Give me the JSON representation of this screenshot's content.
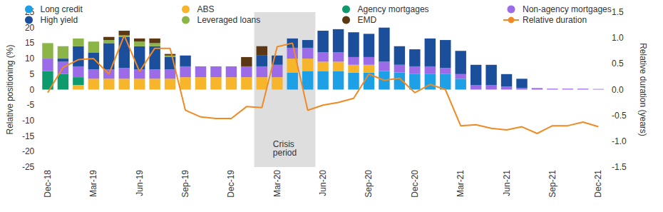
{
  "chart_data": {
    "type": "bar",
    "stacked": true,
    "grid": false,
    "legend": "top",
    "y_label": "Relative positioning (%)",
    "y2_label": "Relative duration (years)",
    "categories": [
      "Dec-18",
      null,
      null,
      "Mar-19",
      null,
      null,
      "Jun-19",
      null,
      null,
      "Sep-19",
      null,
      null,
      "Dec-19",
      null,
      null,
      "Mar-20",
      null,
      null,
      "Jun-20",
      null,
      null,
      "Sep-20",
      null,
      null,
      "Dec-20",
      null,
      null,
      "Mar-21",
      null,
      null,
      "Jun-21",
      null,
      null,
      "Sep-21",
      null,
      null,
      "Dec-21"
    ],
    "ylim": [
      -25,
      25
    ],
    "yticks": [
      -25,
      -20,
      -15,
      -10,
      -5,
      0,
      5,
      10,
      15,
      20,
      25
    ],
    "y2lim": [
      -1.5,
      1.5
    ],
    "y2ticks": [
      -1.5,
      {
        "value": -1,
        "label": "-1.0"
      },
      -0.5,
      {
        "value": 0,
        "label": "0.0"
      },
      0.5,
      {
        "value": 1,
        "label": "1.0"
      },
      1.5
    ],
    "shaded_period": {
      "label": "Crisis period",
      "start": 14,
      "end": 17
    },
    "series": [
      {
        "name": "Long credit",
        "color": "#1ea0e6",
        "values": [
          0,
          0,
          0,
          0,
          0,
          0,
          0,
          0,
          0,
          0,
          0,
          0,
          0,
          0,
          0,
          0,
          5.5,
          6,
          6,
          6,
          5.5,
          5.5,
          6,
          5.5,
          5,
          5,
          5,
          3.5,
          0,
          0,
          0,
          0,
          0,
          0,
          0,
          0,
          0
        ]
      },
      {
        "name": "ABS",
        "color": "#f7b52c",
        "values": [
          0,
          0,
          1.5,
          3.5,
          3.5,
          3.5,
          3.5,
          3.5,
          3.5,
          4,
          4,
          4,
          4,
          4,
          4,
          4,
          4.5,
          4,
          3,
          3,
          2.5,
          2.5,
          0,
          0,
          0,
          0,
          0,
          0,
          0,
          0,
          0,
          0,
          0,
          0,
          0,
          0,
          0
        ]
      },
      {
        "name": "Agency mortgages",
        "color": "#0e9a6c",
        "values": [
          6,
          5,
          2.5,
          0,
          0,
          0,
          0,
          0,
          0,
          0,
          0,
          0,
          0,
          0,
          0,
          0,
          0,
          0,
          0,
          0,
          0,
          0,
          0,
          0,
          0,
          0,
          0,
          0,
          0,
          0,
          0,
          0,
          0,
          0,
          0,
          0,
          0
        ]
      },
      {
        "name": "Non-agency mortgages",
        "color": "#9c6ce8",
        "values": [
          4,
          4,
          3.5,
          3,
          3,
          3.5,
          3,
          3,
          3,
          3.5,
          3.5,
          3.5,
          3.5,
          3.5,
          3.5,
          4,
          3.5,
          3.5,
          3,
          3,
          2.5,
          2.5,
          3,
          2.5,
          2.5,
          2.5,
          2,
          1.5,
          1.5,
          1.5,
          1,
          0.5,
          0.5,
          0.3,
          0.3,
          0.3,
          0.2
        ]
      },
      {
        "name": "High yield",
        "color": "#1b4f9b",
        "values": [
          0,
          1,
          6.5,
          5.5,
          8.5,
          10,
          7.5,
          7.5,
          4,
          3.5,
          0,
          0,
          0,
          0,
          3.5,
          3,
          3,
          2.5,
          7,
          7.5,
          8,
          7.5,
          11,
          6,
          5.5,
          9,
          9,
          7.5,
          6.5,
          6.5,
          4,
          3,
          0,
          0,
          0,
          0,
          0
        ]
      },
      {
        "name": "Leveraged loans",
        "color": "#8cb547",
        "values": [
          5,
          4,
          2.5,
          3.5,
          1,
          0.5,
          1.5,
          1,
          0.5,
          0,
          0,
          0,
          0,
          0,
          0,
          0,
          0,
          0,
          0,
          0,
          0,
          0,
          0,
          0,
          0,
          0,
          0,
          0,
          0,
          0,
          0,
          0,
          0,
          0,
          0,
          0,
          0
        ]
      },
      {
        "name": "EMD",
        "color": "#5b3713",
        "values": [
          0,
          0,
          0,
          0,
          1,
          1.5,
          1,
          1.5,
          0.5,
          0,
          0,
          0,
          0,
          3,
          3,
          0,
          0,
          0,
          0,
          0,
          0,
          0,
          0,
          0,
          0,
          0,
          0,
          0,
          0,
          0,
          0,
          0,
          0,
          0,
          0,
          0,
          0
        ]
      },
      {
        "name": "Relative duration",
        "type": "line",
        "axis": "y2",
        "color": "#f08a24",
        "values": [
          -0.06,
          0.43,
          0.58,
          0.6,
          0.3,
          1.05,
          0.35,
          0.8,
          0.8,
          -0.4,
          -0.53,
          -0.56,
          -0.56,
          -0.33,
          -0.35,
          0.83,
          0.9,
          -0.4,
          -0.3,
          -0.25,
          -0.17,
          0.3,
          0.18,
          0.22,
          -0.06,
          0.1,
          0,
          -0.7,
          -0.68,
          -0.75,
          -0.78,
          -0.72,
          -0.85,
          -0.7,
          -0.7,
          -0.63,
          -0.72
        ]
      }
    ]
  }
}
